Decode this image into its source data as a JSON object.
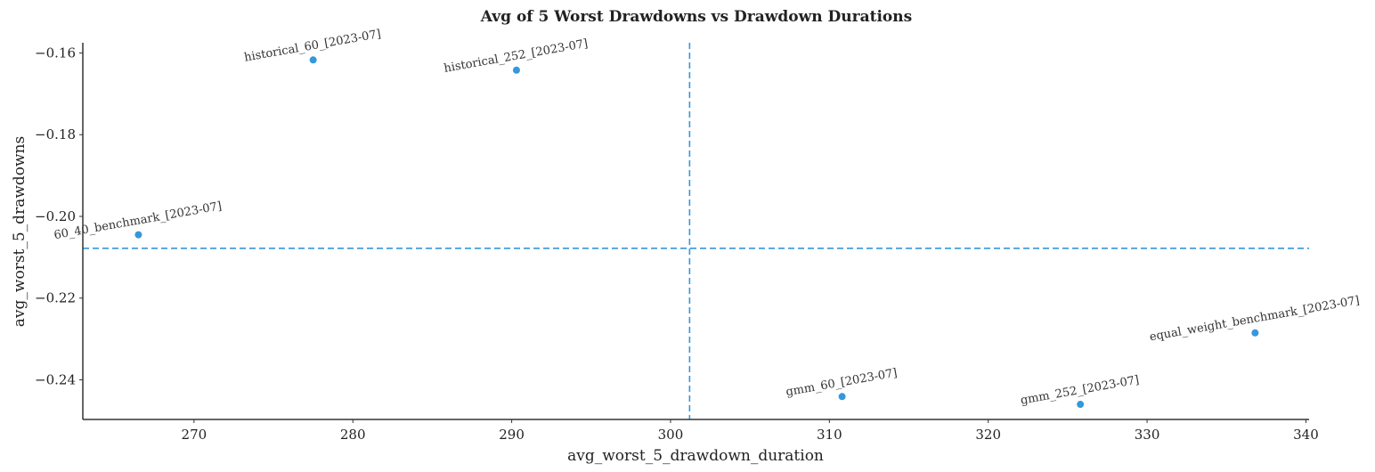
{
  "chart_data": {
    "type": "scatter",
    "title": "Avg of 5 Worst Drawdowns vs Drawdown Durations",
    "xlabel": "avg_worst_5_drawdown_duration",
    "ylabel": "avg_worst_5_drawdowns",
    "xlim": [
      263,
      340.2
    ],
    "ylim": [
      -0.2497,
      -0.1575
    ],
    "xticks": [
      270,
      280,
      290,
      300,
      310,
      320,
      330,
      340
    ],
    "xtick_labels": [
      "270",
      "280",
      "290",
      "300",
      "310",
      "320",
      "330",
      "340"
    ],
    "yticks": [
      -0.16,
      -0.18,
      -0.2,
      -0.22,
      -0.24
    ],
    "ytick_labels": [
      "−0.16",
      "−0.18",
      "−0.20",
      "−0.22",
      "−0.24"
    ],
    "grid": false,
    "point_color": "#3498db",
    "reference_lines": {
      "x": 301.2,
      "y": -0.2078,
      "style": "dashed",
      "color": "#3498db"
    },
    "points": [
      {
        "label": "historical_60_[2023-07]",
        "x": 277.5,
        "y": -0.1617
      },
      {
        "label": "historical_252_[2023-07]",
        "x": 290.3,
        "y": -0.1642
      },
      {
        "label": "60_40_benchmark_[2023-07]",
        "x": 266.5,
        "y": -0.2045
      },
      {
        "label": "equal_weight_benchmark_[2023-07]",
        "x": 336.8,
        "y": -0.2285
      },
      {
        "label": "gmm_60_[2023-07]",
        "x": 310.8,
        "y": -0.2441
      },
      {
        "label": "gmm_252_[2023-07]",
        "x": 325.8,
        "y": -0.246
      }
    ]
  }
}
